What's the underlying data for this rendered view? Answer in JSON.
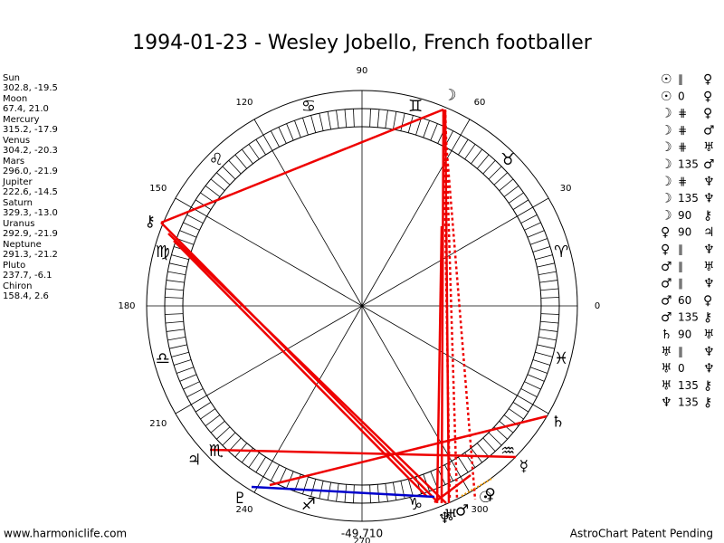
{
  "title": "1994-01-23 - Wesley Jobello, French footballer",
  "planets": [
    {
      "name": "Sun",
      "glyph": "☉",
      "coords": "302.8, -19.5"
    },
    {
      "name": "Moon",
      "glyph": "☽",
      "coords": "67.4, 21.0"
    },
    {
      "name": "Mercury",
      "glyph": "☿",
      "coords": "315.2, -17.9"
    },
    {
      "name": "Venus",
      "glyph": "♀",
      "coords": "304.2, -20.3"
    },
    {
      "name": "Mars",
      "glyph": "♂",
      "coords": "296.0, -21.9"
    },
    {
      "name": "Jupiter",
      "glyph": "♃",
      "coords": "222.6, -14.5"
    },
    {
      "name": "Saturn",
      "glyph": "♄",
      "coords": "329.3, -13.0"
    },
    {
      "name": "Uranus",
      "glyph": "♅",
      "coords": "292.9, -21.9"
    },
    {
      "name": "Neptune",
      "glyph": "♆",
      "coords": "291.3, -21.2"
    },
    {
      "name": "Pluto",
      "glyph": "♇",
      "coords": "237.7, -6.1"
    },
    {
      "name": "Chiron",
      "glyph": "⚷",
      "coords": "158.4, 2.6"
    }
  ],
  "signs": [
    "♈",
    "♉",
    "♊",
    "♋",
    "♌",
    "♍",
    "♎",
    "♏",
    "♐",
    "♑",
    "♒",
    "♓"
  ],
  "degree_labels": [
    0,
    30,
    60,
    90,
    120,
    150,
    180,
    210,
    240,
    270,
    300
  ],
  "aspects": [
    [
      "☉",
      "∥",
      "♀"
    ],
    [
      "☉",
      "0",
      "♀"
    ],
    [
      "☽",
      "⋕",
      "♀"
    ],
    [
      "☽",
      "⋕",
      "♂"
    ],
    [
      "☽",
      "⋕",
      "♅"
    ],
    [
      "☽",
      "135",
      "♂"
    ],
    [
      "☽",
      "⋕",
      "♆"
    ],
    [
      "☽",
      "135",
      "♆"
    ],
    [
      "☽",
      "90",
      "⚷"
    ],
    [
      "♀",
      "90",
      "♃"
    ],
    [
      "♀",
      "∥",
      "♆"
    ],
    [
      "♂",
      "∥",
      "♅"
    ],
    [
      "♂",
      "∥",
      "♆"
    ],
    [
      "♂",
      "60",
      "♀"
    ],
    [
      "♂",
      "135",
      "⚷"
    ],
    [
      "♄",
      "90",
      "♅"
    ],
    [
      "♅",
      "∥",
      "♆"
    ],
    [
      "♅",
      "0",
      "♆"
    ],
    [
      "♅",
      "135",
      "⚷"
    ],
    [
      "♆",
      "135",
      "⚷"
    ]
  ],
  "footer": {
    "left": "www.harmoniclife.com",
    "center": "-49,710",
    "right": "AstroChart Patent Pending"
  }
}
